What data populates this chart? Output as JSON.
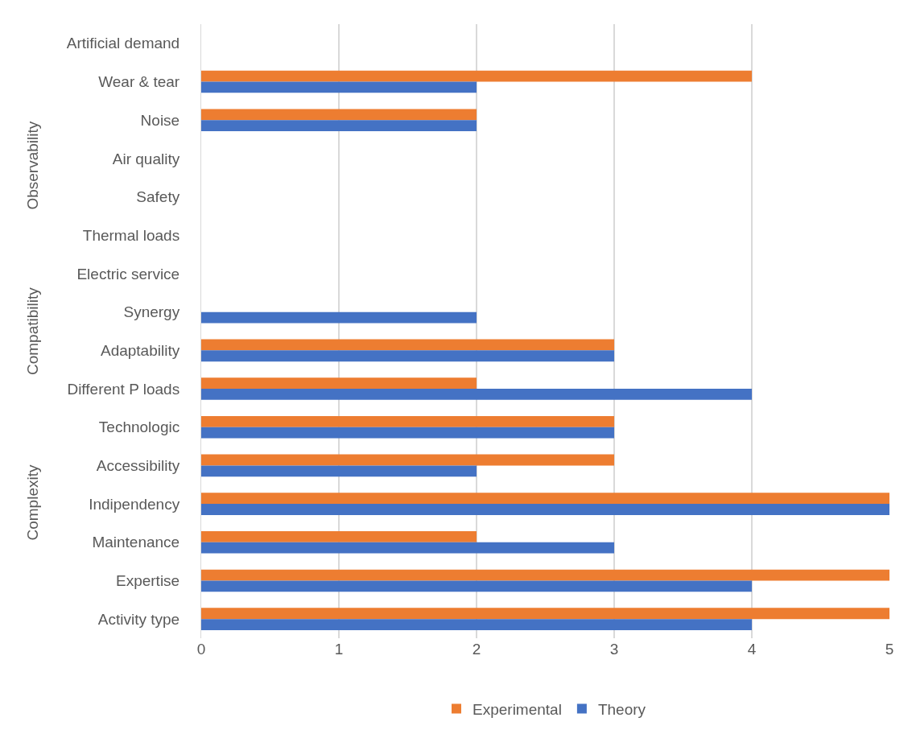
{
  "chart_data": {
    "type": "bar",
    "orientation": "horizontal",
    "categories": [
      "Artificial demand",
      "Wear & tear",
      "Noise",
      "Air quality",
      "Safety",
      "Thermal loads",
      "Electric service",
      "Synergy",
      "Adaptability",
      "Different P loads",
      "Technologic",
      "Accessibility",
      "Indipendency",
      "Maintenance",
      "Expertise",
      "Activity type"
    ],
    "series": [
      {
        "name": "Experimental",
        "color": "#ed7d31",
        "values": [
          null,
          4,
          2,
          null,
          null,
          null,
          null,
          null,
          3,
          2,
          3,
          3,
          5,
          2,
          5,
          5
        ]
      },
      {
        "name": "Theory",
        "color": "#4472c4",
        "values": [
          null,
          2,
          2,
          null,
          null,
          null,
          null,
          2,
          3,
          4,
          3,
          2,
          5,
          3,
          4,
          4
        ]
      }
    ],
    "annotations": [
      "Observability",
      "Compatibility",
      "Complexity"
    ],
    "xlim": [
      0,
      5
    ],
    "xticks": [
      0,
      1,
      2,
      3,
      4,
      5
    ],
    "grid": "x",
    "legend": "bottom"
  }
}
